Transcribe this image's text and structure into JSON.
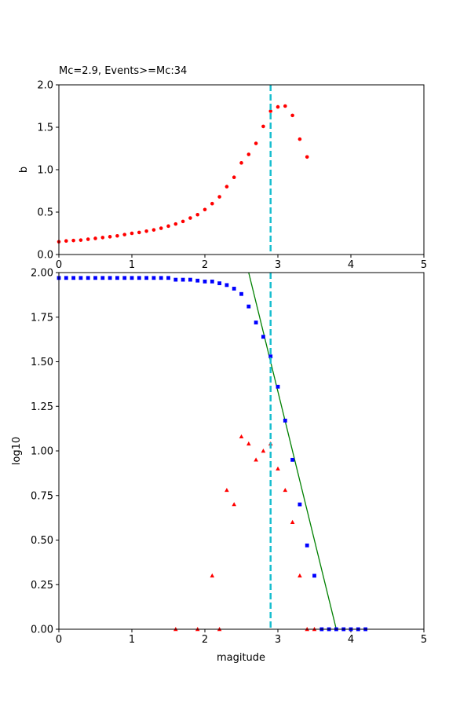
{
  "chart_data": [
    {
      "type": "scatter",
      "title": "Mc=2.9, Events>=Mc:34",
      "xlabel": "",
      "ylabel": "b",
      "xlim": [
        0,
        5
      ],
      "ylim": [
        0,
        2.0
      ],
      "xticks": [
        0,
        1,
        2,
        3,
        4,
        5
      ],
      "yticks": [
        "0.0",
        "0.5",
        "1.0",
        "1.5",
        "2.0"
      ],
      "grid": false,
      "mc_line": {
        "x": 2.9,
        "color": "#17becf"
      },
      "series": [
        {
          "marker": "circle",
          "color": "#ff0000",
          "x": [
            0.0,
            0.1,
            0.2,
            0.3,
            0.4,
            0.5,
            0.6,
            0.7,
            0.8,
            0.9,
            1.0,
            1.1,
            1.2,
            1.3,
            1.4,
            1.5,
            1.6,
            1.7,
            1.8,
            1.9,
            2.0,
            2.1,
            2.2,
            2.3,
            2.4,
            2.5,
            2.6,
            2.7,
            2.8,
            2.9,
            3.0,
            3.1,
            3.2,
            3.3,
            3.4
          ],
          "y": [
            0.15,
            0.16,
            0.165,
            0.17,
            0.18,
            0.19,
            0.2,
            0.21,
            0.22,
            0.235,
            0.25,
            0.26,
            0.275,
            0.29,
            0.31,
            0.335,
            0.36,
            0.39,
            0.43,
            0.47,
            0.53,
            0.6,
            0.68,
            0.8,
            0.91,
            1.08,
            1.18,
            1.31,
            1.51,
            1.69,
            1.74,
            1.75,
            1.64,
            1.36,
            1.15
          ]
        }
      ]
    },
    {
      "type": "scatter",
      "title": "",
      "xlabel": "magitude",
      "ylabel": "log10",
      "xlim": [
        0,
        5
      ],
      "ylim": [
        0,
        2.0
      ],
      "xticks": [
        0,
        1,
        2,
        3,
        4,
        5
      ],
      "yticks": [
        "0.00",
        "0.25",
        "0.50",
        "0.75",
        "1.00",
        "1.25",
        "1.50",
        "1.75",
        "2.00"
      ],
      "grid": false,
      "mc_line": {
        "x": 2.9,
        "color": "#17becf"
      },
      "fit_line": {
        "color": "#008000",
        "x": [
          2.6,
          3.8
        ],
        "y": [
          2.0,
          0.0
        ]
      },
      "series": [
        {
          "marker": "square",
          "color": "#0000ff",
          "x": [
            0.0,
            0.1,
            0.2,
            0.3,
            0.4,
            0.5,
            0.6,
            0.7,
            0.8,
            0.9,
            1.0,
            1.1,
            1.2,
            1.3,
            1.4,
            1.5,
            1.6,
            1.7,
            1.8,
            1.9,
            2.0,
            2.1,
            2.2,
            2.3,
            2.4,
            2.5,
            2.6,
            2.7,
            2.8,
            2.9,
            3.0,
            3.1,
            3.2,
            3.3,
            3.4,
            3.5,
            3.6,
            3.7,
            3.8,
            3.9,
            4.0,
            4.1,
            4.2
          ],
          "y": [
            1.97,
            1.97,
            1.97,
            1.97,
            1.97,
            1.97,
            1.97,
            1.97,
            1.97,
            1.97,
            1.97,
            1.97,
            1.97,
            1.97,
            1.97,
            1.97,
            1.96,
            1.96,
            1.96,
            1.955,
            1.95,
            1.95,
            1.94,
            1.93,
            1.91,
            1.88,
            1.81,
            1.72,
            1.64,
            1.53,
            1.36,
            1.17,
            0.95,
            0.7,
            0.47,
            0.3,
            0.0,
            0.0,
            0.0,
            0.0,
            0.0,
            0.0,
            0.0
          ]
        },
        {
          "marker": "triangle",
          "color": "#ff0000",
          "x": [
            1.6,
            1.9,
            2.1,
            2.2,
            2.3,
            2.4,
            2.5,
            2.6,
            2.7,
            2.8,
            2.9,
            3.0,
            3.1,
            3.2,
            3.3,
            3.4,
            3.5
          ],
          "y": [
            0.0,
            0.0,
            0.3,
            0.0,
            0.78,
            0.7,
            1.08,
            1.04,
            0.95,
            1.0,
            1.04,
            0.9,
            0.78,
            0.6,
            0.3,
            0.0,
            0.0
          ]
        }
      ]
    }
  ]
}
